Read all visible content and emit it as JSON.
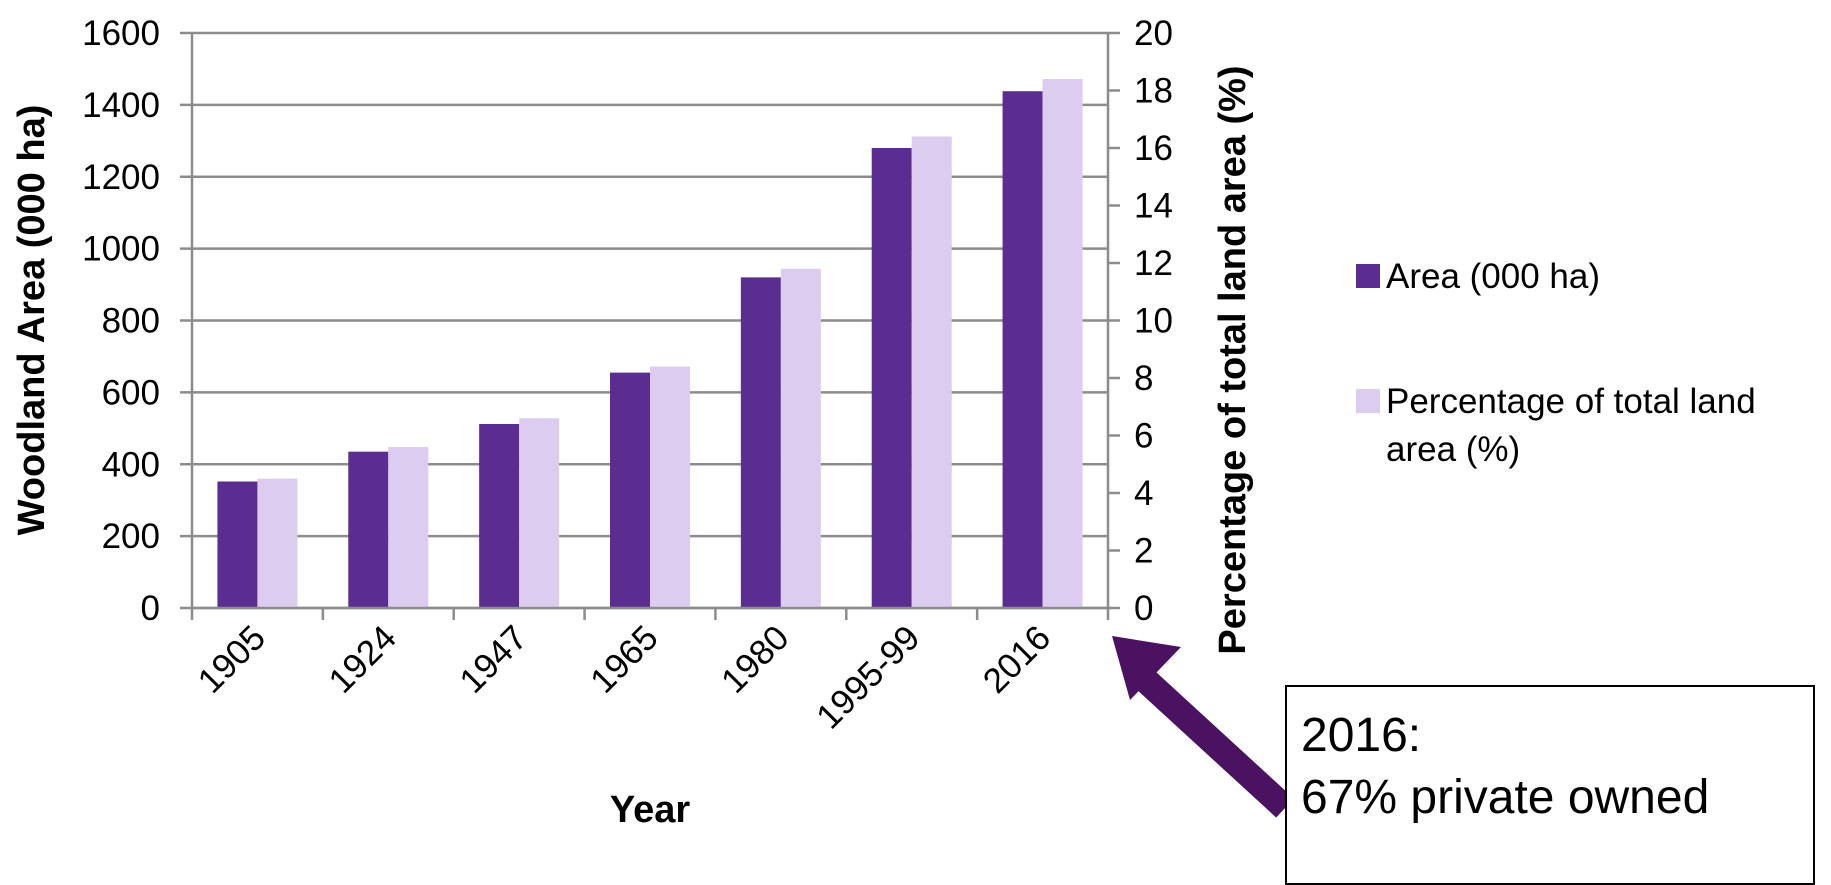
{
  "chart_data": {
    "type": "bar",
    "categories": [
      "1905",
      "1924",
      "1947",
      "1965",
      "1980",
      "1995-99",
      "2016"
    ],
    "series": [
      {
        "name": "Area (000 ha)",
        "axis": "left",
        "color": "#5c2d91",
        "values": [
          352,
          435,
          512,
          655,
          920,
          1280,
          1438
        ]
      },
      {
        "name": "Percentage of total land area (%)",
        "axis": "right",
        "color": "#dcccf0",
        "values": [
          4.5,
          5.6,
          6.6,
          8.4,
          11.8,
          16.4,
          18.4
        ]
      }
    ],
    "xlabel": "Year",
    "ylabel": "Woodland Area (000 ha)",
    "y2label": "Percentage of total land area (%)",
    "ylim": [
      0,
      1600
    ],
    "y2lim": [
      0,
      20
    ],
    "yticks": [
      "0",
      "200",
      "400",
      "600",
      "800",
      "1000",
      "1200",
      "1400",
      "1600"
    ],
    "y2ticks": [
      "0",
      "2",
      "4",
      "6",
      "8",
      "10",
      "12",
      "14",
      "16",
      "18",
      "20"
    ],
    "grid": true,
    "legend_position": "right",
    "legend": [
      {
        "label_lines": [
          "Area (000 ha)"
        ],
        "color": "#5c2d91"
      },
      {
        "label_lines": [
          "Percentage of total land",
          "area (%)"
        ],
        "color": "#dcccf0"
      }
    ]
  },
  "annotation": {
    "lines": [
      "2016:",
      "67% private owned"
    ],
    "arrow_color": "#4a1260"
  }
}
